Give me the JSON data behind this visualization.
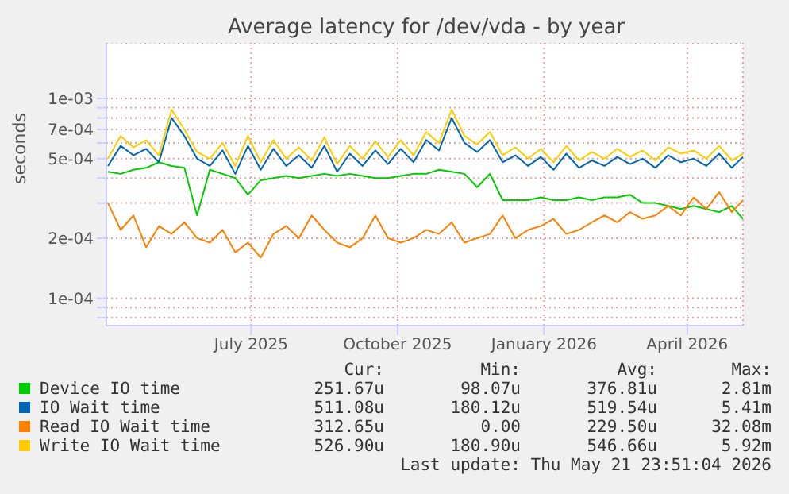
{
  "chart_data": {
    "type": "line",
    "title": "Average latency for /dev/vda - by year",
    "ylabel": "seconds",
    "log": true,
    "grid": true,
    "legend": "bottom",
    "marker": "none",
    "line_style": "solid",
    "xlim": [
      "2025-04-16",
      "2026-05-21"
    ],
    "xticks": [
      {
        "value": "2025-07-16",
        "label": "July 2025"
      },
      {
        "value": "2025-10-16",
        "label": "October 2025"
      },
      {
        "value": "2026-01-16",
        "label": "January 2026"
      },
      {
        "value": "2026-04-16",
        "label": "April 2026"
      }
    ],
    "ylim": [
      7.3e-05,
      0.0019
    ],
    "yticks": [
      {
        "value": 8e-05,
        "label": null
      },
      {
        "value": 9e-05,
        "label": null
      },
      {
        "value": 0.0001,
        "label": "1e-04"
      },
      {
        "value": 0.0002,
        "label": "2e-04"
      },
      {
        "value": 0.0003,
        "label": null
      },
      {
        "value": 0.0004,
        "label": null
      },
      {
        "value": 0.0005,
        "label": "5e-04"
      },
      {
        "value": 0.0006,
        "label": null
      },
      {
        "value": 0.0007,
        "label": "7e-04"
      },
      {
        "value": 0.0008,
        "label": null
      },
      {
        "value": 0.0009,
        "label": null
      },
      {
        "value": 0.001,
        "label": "1e-03"
      }
    ],
    "x": [
      "2025-04-17",
      "2025-04-25",
      "2025-05-03",
      "2025-05-11",
      "2025-05-19",
      "2025-05-27",
      "2025-06-04",
      "2025-06-12",
      "2025-06-20",
      "2025-06-28",
      "2025-07-06",
      "2025-07-14",
      "2025-07-22",
      "2025-07-30",
      "2025-08-07",
      "2025-08-15",
      "2025-08-23",
      "2025-08-31",
      "2025-09-08",
      "2025-09-16",
      "2025-09-24",
      "2025-10-02",
      "2025-10-10",
      "2025-10-18",
      "2025-10-26",
      "2025-11-03",
      "2025-11-11",
      "2025-11-19",
      "2025-11-27",
      "2025-12-05",
      "2025-12-13",
      "2025-12-21",
      "2025-12-29",
      "2026-01-06",
      "2026-01-14",
      "2026-01-22",
      "2026-01-30",
      "2026-02-07",
      "2026-02-15",
      "2026-02-23",
      "2026-03-03",
      "2026-03-11",
      "2026-03-19",
      "2026-03-27",
      "2026-04-04",
      "2026-04-12",
      "2026-04-20",
      "2026-04-28",
      "2026-05-06",
      "2026-05-14",
      "2026-05-21"
    ],
    "series": [
      {
        "name": "Device IO time",
        "color": "#00cc00",
        "values": [
          0.00043,
          0.00042,
          0.00044,
          0.00045,
          0.00048,
          0.00046,
          0.00045,
          0.00026,
          0.00044,
          0.00042,
          0.0004,
          0.00033,
          0.00039,
          0.0004,
          0.00041,
          0.0004,
          0.00041,
          0.00042,
          0.00041,
          0.00042,
          0.00041,
          0.0004,
          0.0004,
          0.00041,
          0.00042,
          0.00042,
          0.00044,
          0.00043,
          0.00042,
          0.00036,
          0.00042,
          0.00031,
          0.00031,
          0.00031,
          0.00032,
          0.00031,
          0.00031,
          0.00032,
          0.00031,
          0.00032,
          0.00032,
          0.00033,
          0.0003,
          0.0003,
          0.00029,
          0.00028,
          0.00029,
          0.00028,
          0.00027,
          0.00029,
          0.00025
        ]
      },
      {
        "name": "IO Wait time",
        "color": "#0066b3",
        "values": [
          0.00046,
          0.00058,
          0.00052,
          0.00056,
          0.00048,
          0.0008,
          0.00065,
          0.0005,
          0.00046,
          0.00055,
          0.00042,
          0.00058,
          0.00044,
          0.00056,
          0.00046,
          0.00052,
          0.00045,
          0.00058,
          0.00043,
          0.00053,
          0.00046,
          0.00055,
          0.00047,
          0.00056,
          0.00048,
          0.00062,
          0.00055,
          0.0008,
          0.0006,
          0.00054,
          0.00062,
          0.00048,
          0.00052,
          0.00046,
          0.00051,
          0.00044,
          0.00053,
          0.00045,
          0.00049,
          0.00046,
          0.00051,
          0.00047,
          0.0005,
          0.00045,
          0.00052,
          0.00048,
          0.0005,
          0.00046,
          0.00053,
          0.00045,
          0.00051
        ]
      },
      {
        "name": "Read IO Wait time",
        "color": "#ff8000",
        "values": [
          0.0003,
          0.00022,
          0.00026,
          0.00018,
          0.00023,
          0.00021,
          0.00024,
          0.0002,
          0.00019,
          0.00022,
          0.00017,
          0.00019,
          0.00016,
          0.00021,
          0.00023,
          0.0002,
          0.00026,
          0.00022,
          0.00019,
          0.00018,
          0.0002,
          0.00026,
          0.0002,
          0.00019,
          0.0002,
          0.00022,
          0.00021,
          0.00024,
          0.00019,
          0.0002,
          0.00021,
          0.00026,
          0.0002,
          0.00022,
          0.00023,
          0.00025,
          0.00021,
          0.00022,
          0.00024,
          0.00026,
          0.00024,
          0.00027,
          0.00025,
          0.00026,
          0.00029,
          0.00026,
          0.00032,
          0.00028,
          0.00034,
          0.00027,
          0.00031
        ]
      },
      {
        "name": "Write IO Wait time",
        "color": "#ffcc00",
        "values": [
          0.0005,
          0.00065,
          0.00057,
          0.00062,
          0.00052,
          0.00088,
          0.0007,
          0.00054,
          0.0005,
          0.0006,
          0.00046,
          0.00065,
          0.00048,
          0.00062,
          0.0005,
          0.00057,
          0.00049,
          0.00064,
          0.00047,
          0.00058,
          0.0005,
          0.00061,
          0.00051,
          0.00062,
          0.00052,
          0.00068,
          0.0006,
          0.00088,
          0.00065,
          0.00059,
          0.00068,
          0.00052,
          0.00057,
          0.0005,
          0.00056,
          0.00048,
          0.00058,
          0.00049,
          0.00054,
          0.0005,
          0.00056,
          0.00051,
          0.00055,
          0.00049,
          0.00057,
          0.00053,
          0.00055,
          0.0005,
          0.00058,
          0.00049,
          0.00053
        ]
      }
    ],
    "annotations": [
      "Cur:",
      "Min:",
      "Avg:",
      "Max:",
      "251.67u",
      "98.07u",
      "376.81u",
      "2.81m",
      "511.08u",
      "180.12u",
      "519.54u",
      "5.41m",
      "312.65u",
      "0.00",
      "229.50u",
      "32.08m",
      "526.90u",
      "180.90u",
      "546.66u",
      "5.92m",
      "Last update: Thu May 21 23:51:04 2026"
    ]
  }
}
